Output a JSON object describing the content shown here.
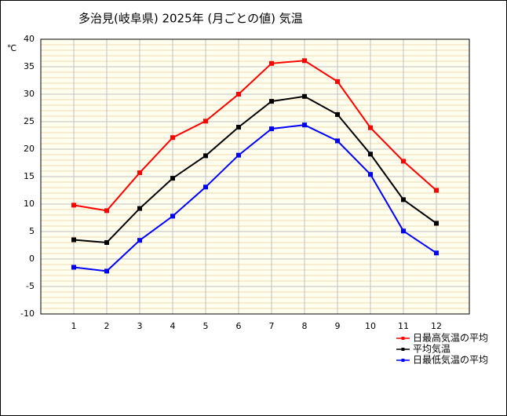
{
  "chart_data": {
    "type": "line",
    "title": "多治見(岐阜県)  2025年  (月ごとの値)  気温",
    "y_label": "℃",
    "x": [
      1,
      2,
      3,
      4,
      5,
      6,
      7,
      8,
      9,
      10,
      11,
      12
    ],
    "xlim": [
      0,
      13
    ],
    "xticks": [
      1,
      2,
      3,
      4,
      5,
      6,
      7,
      8,
      9,
      10,
      11,
      12
    ],
    "ylim": [
      -10,
      40
    ],
    "yticks": [
      -10,
      -5,
      0,
      5,
      10,
      15,
      20,
      25,
      30,
      35,
      40
    ],
    "minor_grid_step": 1,
    "grid": true,
    "legend": "bottom-right",
    "series": [
      {
        "name": "日最高気温の平均",
        "color": "#ff0000",
        "values": [
          9.8,
          8.8,
          15.7,
          22.1,
          25.1,
          30.0,
          35.6,
          36.1,
          32.3,
          23.9,
          17.8,
          12.5
        ]
      },
      {
        "name": "平均気温",
        "color": "#000000",
        "values": [
          3.5,
          3.0,
          9.2,
          14.7,
          18.8,
          24.0,
          28.7,
          29.6,
          26.3,
          19.1,
          10.8,
          6.5
        ]
      },
      {
        "name": "日最低気温の平均",
        "color": "#0000ff",
        "values": [
          -1.5,
          -2.2,
          3.4,
          7.8,
          13.1,
          18.9,
          23.7,
          24.4,
          21.5,
          15.4,
          5.1,
          1.1
        ]
      }
    ]
  }
}
